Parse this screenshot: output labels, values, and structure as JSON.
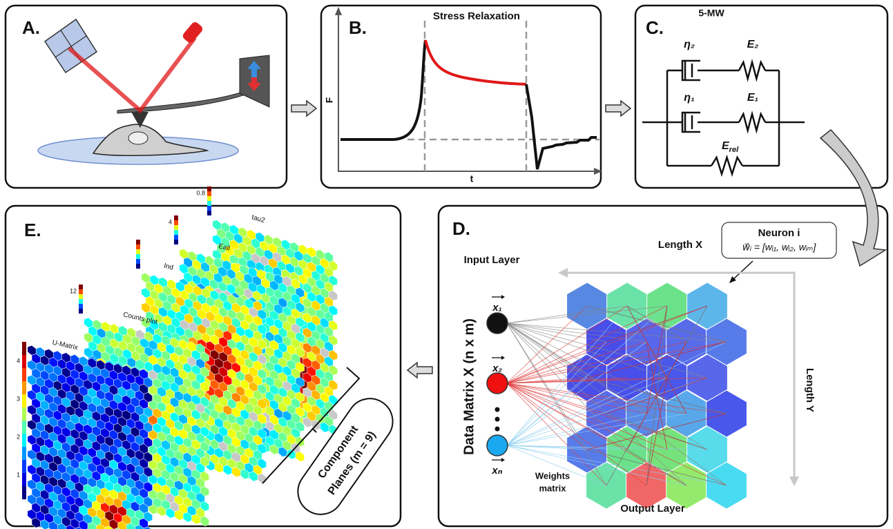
{
  "panel_a": {
    "label": "A."
  },
  "panel_b": {
    "label": "B.",
    "title": "Stress Relaxation",
    "y_label": "F",
    "x_label": "t"
  },
  "panel_c": {
    "label": "C.",
    "title": "5-MW",
    "eta2": "η₂",
    "e2": "E₂",
    "eta1": "η₁",
    "e1": "E₁",
    "erel": {
      "base": "E",
      "sub": "rel"
    }
  },
  "panel_d": {
    "label": "D.",
    "neuron": {
      "title": "Neuron i",
      "formula": "w⃗ᵢ = [wᵢ₁, wᵢ₂, wᵢₘ]"
    },
    "length_x": "Length X",
    "length_y": "Length Y",
    "input_layer": "Input Layer",
    "data_matrix": "Data Matrix X (n x m)",
    "inputs": [
      "x₁",
      "x₂",
      "xₙ"
    ],
    "weights": [
      "Weights",
      "matrix"
    ],
    "output_layer": "Output Layer"
  },
  "panel_e": {
    "label": "E.",
    "planes": [
      {
        "name": "U-Matrix",
        "scale": [
          "4",
          "3",
          "2",
          "1"
        ]
      },
      {
        "name": "Counts plot",
        "scale": [
          "12"
        ]
      },
      {
        "name": "Ind",
        "scale": []
      },
      {
        "name": "Eall",
        "scale": [
          "4"
        ]
      },
      {
        "name": "tau2",
        "scale": [
          "0.8"
        ]
      }
    ],
    "component_planes": [
      "Component",
      "Planes (m = 9)"
    ]
  }
}
